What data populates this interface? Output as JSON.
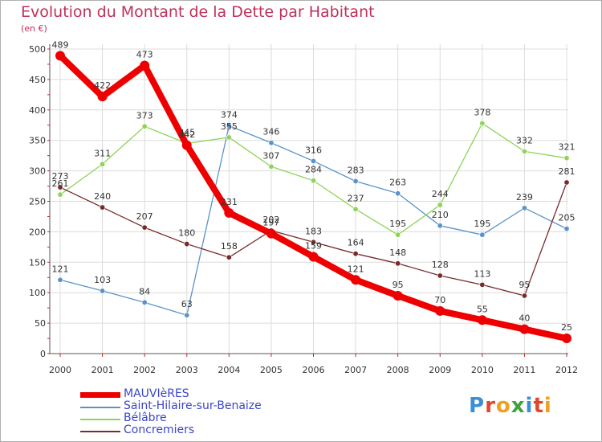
{
  "header": {
    "title": "Evolution du Montant de la Dette par Habitant",
    "subtitle": "(en €)"
  },
  "logo": {
    "letters": [
      "P",
      "r",
      "o",
      "x",
      "i",
      "t",
      "i"
    ],
    "colors": [
      "#3a8fd6",
      "#e0482a",
      "#f0a020",
      "#3fa23a",
      "#3a8fd6",
      "#e0482a",
      "#f0a020"
    ]
  },
  "chart_data": {
    "type": "line",
    "title": "Evolution du Montant de la Dette par Habitant",
    "subtitle": "(en €)",
    "xlabel": "",
    "ylabel": "",
    "x": [
      "2000",
      "2001",
      "2002",
      "2003",
      "2004",
      "2005",
      "2006",
      "2007",
      "2008",
      "2009",
      "2010",
      "2011",
      "2012"
    ],
    "ylim": [
      0,
      500
    ],
    "yticks": [
      0,
      50,
      100,
      150,
      200,
      250,
      300,
      350,
      400,
      450,
      500
    ],
    "grid": true,
    "legend_position": "bottom-left",
    "series": [
      {
        "name": "MAUVIèRES",
        "color": "#ee0000",
        "values": [
          489,
          422,
          473,
          342,
          231,
          197,
          159,
          121,
          95,
          70,
          55,
          40,
          25
        ],
        "labels": [
          "489",
          "422",
          "473",
          "342",
          "231",
          "197",
          "159",
          "121",
          "95",
          "70",
          "55",
          "40",
          "25"
        ]
      },
      {
        "name": "Saint-Hilaire-sur-Benaize",
        "color": "#5b93c9",
        "values": [
          121,
          103,
          84,
          63,
          374,
          346,
          316,
          283,
          263,
          210,
          195,
          239,
          205
        ],
        "labels": [
          "121",
          "103",
          "84",
          "63",
          "374",
          "346",
          "316",
          "283",
          "263",
          "210",
          "195",
          "239",
          "205"
        ]
      },
      {
        "name": "Bélâbre",
        "color": "#8fd45a",
        "values": [
          261,
          311,
          373,
          345,
          355,
          307,
          284,
          237,
          195,
          244,
          378,
          332,
          321
        ],
        "labels": [
          "261",
          "311",
          "373",
          "345",
          "355",
          "307",
          "284",
          "237",
          "195",
          "244",
          "378",
          "332",
          "321"
        ]
      },
      {
        "name": "Concremiers",
        "color": "#7a2a2a",
        "values": [
          273,
          240,
          207,
          180,
          158,
          202,
          183,
          164,
          148,
          128,
          113,
          95,
          281
        ],
        "labels": [
          "273",
          "240",
          "207",
          "180",
          "158",
          "202",
          "183",
          "164",
          "148",
          "128",
          "113",
          "95",
          "281"
        ]
      }
    ]
  }
}
